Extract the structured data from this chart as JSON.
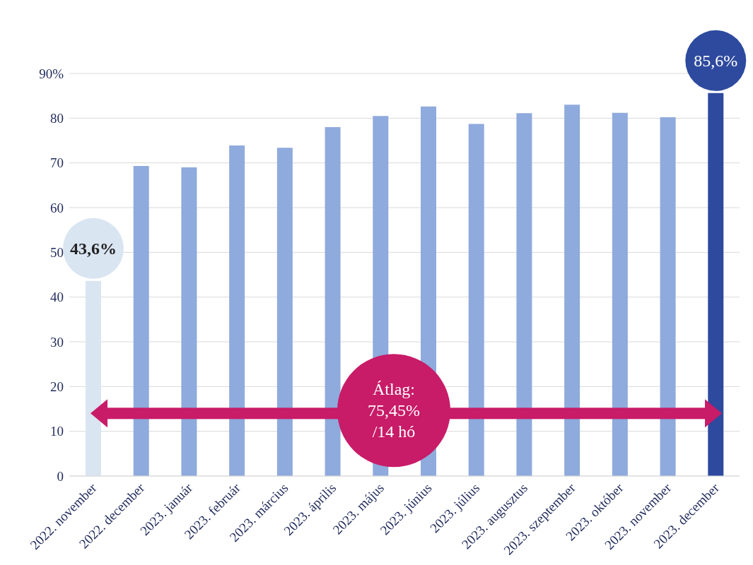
{
  "chart_data": {
    "type": "bar",
    "categories": [
      "2022. november",
      "2022. december",
      "2023. január",
      "2023. február",
      "2023. március",
      "2023. április",
      "2023. május",
      "2023. június",
      "2023. július",
      "2023. augusztus",
      "2023. szeptember",
      "2023. október",
      "2023. november",
      "2023. december"
    ],
    "values": [
      43.6,
      69.3,
      69.0,
      73.9,
      73.4,
      78.0,
      80.5,
      82.6,
      78.7,
      81.1,
      83.0,
      81.2,
      80.2,
      85.6
    ],
    "colors": [
      "#dae5f2",
      "#8faadc",
      "#8faadc",
      "#8faadc",
      "#8faadc",
      "#8faadc",
      "#8faadc",
      "#8faadc",
      "#8faadc",
      "#8faadc",
      "#8faadc",
      "#8faadc",
      "#8faadc",
      "#2e4a9e"
    ],
    "value_labels": [
      "43,6%",
      null,
      null,
      null,
      null,
      null,
      null,
      null,
      null,
      null,
      null,
      null,
      null,
      "85,6%"
    ],
    "ylim": [
      0,
      90
    ],
    "yticks": [
      0,
      10,
      20,
      30,
      40,
      50,
      60,
      70,
      80,
      {
        "value": 90,
        "label": "90%"
      }
    ],
    "grid": "y",
    "annotations": [
      "Átlag:\n75,45%\n/14 hó"
    ]
  }
}
